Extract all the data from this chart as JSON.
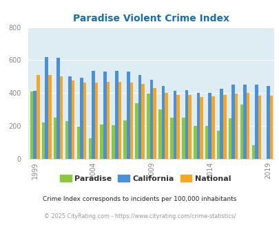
{
  "title": "Paradise Violent Crime Index",
  "years": [
    1999,
    2000,
    2001,
    2002,
    2003,
    2004,
    2005,
    2006,
    2007,
    2008,
    2009,
    2010,
    2011,
    2012,
    2013,
    2014,
    2015,
    2016,
    2017,
    2018,
    2019
  ],
  "paradise": [
    410,
    220,
    250,
    230,
    195,
    125,
    210,
    205,
    235,
    340,
    395,
    300,
    250,
    250,
    200,
    200,
    170,
    245,
    330,
    85,
    0
  ],
  "california": [
    415,
    620,
    615,
    500,
    495,
    535,
    530,
    535,
    530,
    510,
    480,
    445,
    415,
    420,
    400,
    400,
    425,
    450,
    450,
    450,
    445
  ],
  "national": [
    510,
    510,
    500,
    475,
    465,
    465,
    470,
    470,
    465,
    455,
    430,
    400,
    390,
    390,
    375,
    380,
    390,
    395,
    400,
    385,
    385
  ],
  "paradise_color": "#8dc63f",
  "california_color": "#4a90d9",
  "national_color": "#f5a623",
  "plot_bg": "#deedf3",
  "ylim": [
    0,
    800
  ],
  "yticks": [
    0,
    200,
    400,
    600,
    800
  ],
  "xlabel_ticks": [
    1999,
    2004,
    2009,
    2014,
    2019
  ],
  "legend_labels": [
    "Paradise",
    "California",
    "National"
  ],
  "footnote1": "Crime Index corresponds to incidents per 100,000 inhabitants",
  "footnote2": "© 2025 CityRating.com - https://www.cityrating.com/crime-statistics/",
  "title_color": "#1a6daf",
  "legend_color": "#333333",
  "footnote1_color": "#222222",
  "footnote2_color": "#999999"
}
